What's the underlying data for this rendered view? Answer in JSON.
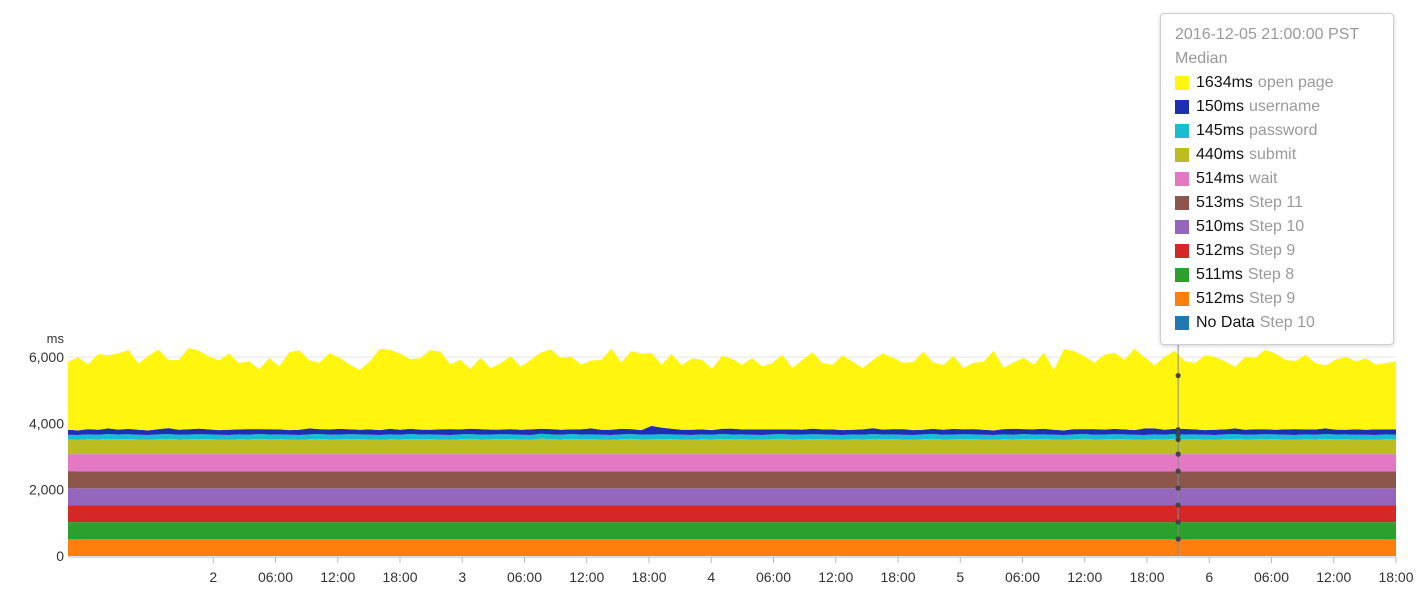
{
  "chart_data": {
    "type": "area",
    "stacked": true,
    "ylabel": "ms",
    "ylim": [
      0,
      6000
    ],
    "yticks": [
      {
        "value": 0,
        "label": "0"
      },
      {
        "value": 2000,
        "label": "2,000"
      },
      {
        "value": 4000,
        "label": "4,000"
      },
      {
        "value": 6000,
        "label": "6,000"
      }
    ],
    "xlim": [
      "2016-12-01 10:00",
      "2016-12-06 18:00"
    ],
    "xticks": [
      {
        "time": "2016-12-02 00:00",
        "label": "2"
      },
      {
        "time": "2016-12-02 06:00",
        "label": "06:00"
      },
      {
        "time": "2016-12-02 12:00",
        "label": "12:00"
      },
      {
        "time": "2016-12-02 18:00",
        "label": "18:00"
      },
      {
        "time": "2016-12-03 00:00",
        "label": "3"
      },
      {
        "time": "2016-12-03 06:00",
        "label": "06:00"
      },
      {
        "time": "2016-12-03 12:00",
        "label": "12:00"
      },
      {
        "time": "2016-12-03 18:00",
        "label": "18:00"
      },
      {
        "time": "2016-12-04 00:00",
        "label": "4"
      },
      {
        "time": "2016-12-04 06:00",
        "label": "06:00"
      },
      {
        "time": "2016-12-04 12:00",
        "label": "12:00"
      },
      {
        "time": "2016-12-04 18:00",
        "label": "18:00"
      },
      {
        "time": "2016-12-05 00:00",
        "label": "5"
      },
      {
        "time": "2016-12-05 06:00",
        "label": "06:00"
      },
      {
        "time": "2016-12-05 12:00",
        "label": "12:00"
      },
      {
        "time": "2016-12-05 18:00",
        "label": "18:00"
      },
      {
        "time": "2016-12-06 00:00",
        "label": "6"
      },
      {
        "time": "2016-12-06 06:00",
        "label": "06:00"
      },
      {
        "time": "2016-12-06 12:00",
        "label": "12:00"
      },
      {
        "time": "2016-12-06 18:00",
        "label": "18:00"
      }
    ],
    "grid": true,
    "series": [
      {
        "name": "Step 9",
        "color": "#ff7f0e",
        "value": 512
      },
      {
        "name": "Step 8",
        "color": "#2ca02c",
        "value": 511
      },
      {
        "name": "Step 9",
        "color": "#d62728",
        "value": 512
      },
      {
        "name": "Step 10",
        "color": "#9467bd",
        "value": 510
      },
      {
        "name": "Step 11",
        "color": "#8c564b",
        "value": 513
      },
      {
        "name": "wait",
        "color": "#e377c2",
        "value": 514
      },
      {
        "name": "submit",
        "color": "#bcbd22",
        "value": 440,
        "values": [
          440,
          430,
          450,
          440,
          460,
          445,
          455,
          440,
          430,
          450,
          460,
          440,
          445,
          455,
          450,
          440,
          430,
          450,
          440,
          460,
          445,
          450,
          440,
          430,
          450,
          460,
          440,
          445,
          455,
          450,
          440,
          430,
          450,
          440,
          460,
          445,
          450,
          440,
          430,
          450,
          460,
          440,
          445,
          455,
          450,
          440,
          430,
          470,
          450,
          440,
          460,
          445,
          450,
          440,
          430,
          450,
          460,
          440,
          445,
          455,
          450,
          440,
          430,
          450,
          440,
          460,
          445,
          450,
          440,
          430,
          450,
          460,
          440,
          445,
          455,
          450,
          440,
          430,
          450,
          440,
          460,
          445,
          450,
          440,
          430,
          450,
          460,
          440,
          445,
          455,
          450,
          440,
          430,
          450,
          440,
          460,
          445,
          450,
          440,
          430,
          450,
          460,
          440,
          445,
          455,
          450,
          440,
          430,
          450,
          440,
          460,
          445,
          450,
          440,
          430,
          450,
          460,
          440,
          445,
          455,
          450,
          440,
          430,
          450,
          440,
          460,
          445,
          450,
          440
        ]
      },
      {
        "name": "password",
        "color": "#17becf",
        "value": 145
      },
      {
        "name": "username",
        "color": "#1f2fb4",
        "value": 150,
        "values": [
          150,
          140,
          160,
          150,
          170,
          150,
          160,
          150,
          140,
          160,
          180,
          150,
          160,
          170,
          150,
          140,
          160,
          150,
          170,
          150,
          160,
          150,
          140,
          160,
          180,
          150,
          160,
          170,
          150,
          140,
          160,
          150,
          170,
          150,
          160,
          150,
          140,
          160,
          180,
          150,
          160,
          170,
          150,
          140,
          160,
          150,
          170,
          150,
          160,
          150,
          140,
          160,
          180,
          150,
          160,
          170,
          150,
          140,
          260,
          200,
          170,
          150,
          160,
          150,
          140,
          160,
          180,
          150,
          160,
          170,
          150,
          140,
          160,
          150,
          170,
          150,
          160,
          150,
          140,
          160,
          180,
          150,
          160,
          170,
          150,
          140,
          160,
          150,
          170,
          150,
          160,
          150,
          140,
          160,
          180,
          150,
          160,
          170,
          150,
          140,
          160,
          150,
          170,
          150,
          160,
          150,
          140,
          200,
          180,
          150,
          160,
          170,
          150,
          140,
          160,
          150,
          170,
          150,
          160,
          150,
          140,
          160,
          180,
          150,
          160,
          170,
          150,
          140,
          160,
          150,
          170,
          150,
          160
        ]
      },
      {
        "name": "open page",
        "color": "#fff50f",
        "value": 1634,
        "values": [
          2050,
          2200,
          1950,
          2280,
          2200,
          2300,
          2380,
          2000,
          2250,
          2400,
          2050,
          2100,
          2450,
          2350,
          2200,
          2100,
          2300,
          2000,
          2050,
          1800,
          2150,
          1900,
          2350,
          2400,
          2050,
          2000,
          2300,
          2150,
          1950,
          1800,
          2050,
          2450,
          2380,
          2300,
          2100,
          2150,
          2400,
          2350,
          1950,
          2100,
          1800,
          2150,
          1850,
          2000,
          2200,
          1900,
          2100,
          2300,
          2400,
          2150,
          2200,
          1950,
          2050,
          2100,
          2450,
          2000,
          2350,
          2300,
          2200,
          1900,
          2250,
          1950,
          2150,
          2100,
          1850,
          2200,
          2100,
          1950,
          2150,
          1900,
          2000,
          2250,
          1850,
          2100,
          2300,
          2000,
          1950,
          2250,
          2050,
          1850,
          2050,
          2300,
          2150,
          2000,
          2050,
          2350,
          2000,
          1950,
          2200,
          1850,
          2000,
          2050,
          2400,
          1850,
          2000,
          2150,
          1950,
          2300,
          1800,
          2450,
          2350,
          2200,
          2000,
          2250,
          2300,
          2100,
          2450,
          2150,
          1900,
          2200,
          2350,
          2050,
          2000,
          2250,
          2200,
          2050,
          1850,
          2200,
          2150,
          2400,
          2300,
          2100,
          2050,
          2250,
          2000,
          1900,
          2100,
          2200,
          2050,
          2150,
          1950,
          2000
        ]
      }
    ],
    "hover": {
      "time": "2016-12-05 21:00",
      "points": [
        512,
        1023,
        1535,
        2045,
        2558,
        3072,
        3512,
        3657,
        3807,
        5441
      ]
    }
  },
  "tooltip": {
    "timestamp": "2016-12-05 21:00:00 PST",
    "stat": "Median",
    "items": [
      {
        "value": "1634ms",
        "name": "open page",
        "color": "#fff50f"
      },
      {
        "value": "150ms",
        "name": "username",
        "color": "#1f2fb4"
      },
      {
        "value": "145ms",
        "name": "password",
        "color": "#17becf"
      },
      {
        "value": "440ms",
        "name": "submit",
        "color": "#bcbd22"
      },
      {
        "value": "514ms",
        "name": "wait",
        "color": "#e377c2"
      },
      {
        "value": "513ms",
        "name": "Step 11",
        "color": "#8c564b"
      },
      {
        "value": "510ms",
        "name": "Step 10",
        "color": "#9467bd"
      },
      {
        "value": "512ms",
        "name": "Step 9",
        "color": "#d62728"
      },
      {
        "value": "511ms",
        "name": "Step 8",
        "color": "#2ca02c"
      },
      {
        "value": "512ms",
        "name": "Step 9",
        "color": "#ff7f0e"
      },
      {
        "value": "No Data",
        "name": "Step 10",
        "color": "#1f77b4"
      }
    ]
  }
}
